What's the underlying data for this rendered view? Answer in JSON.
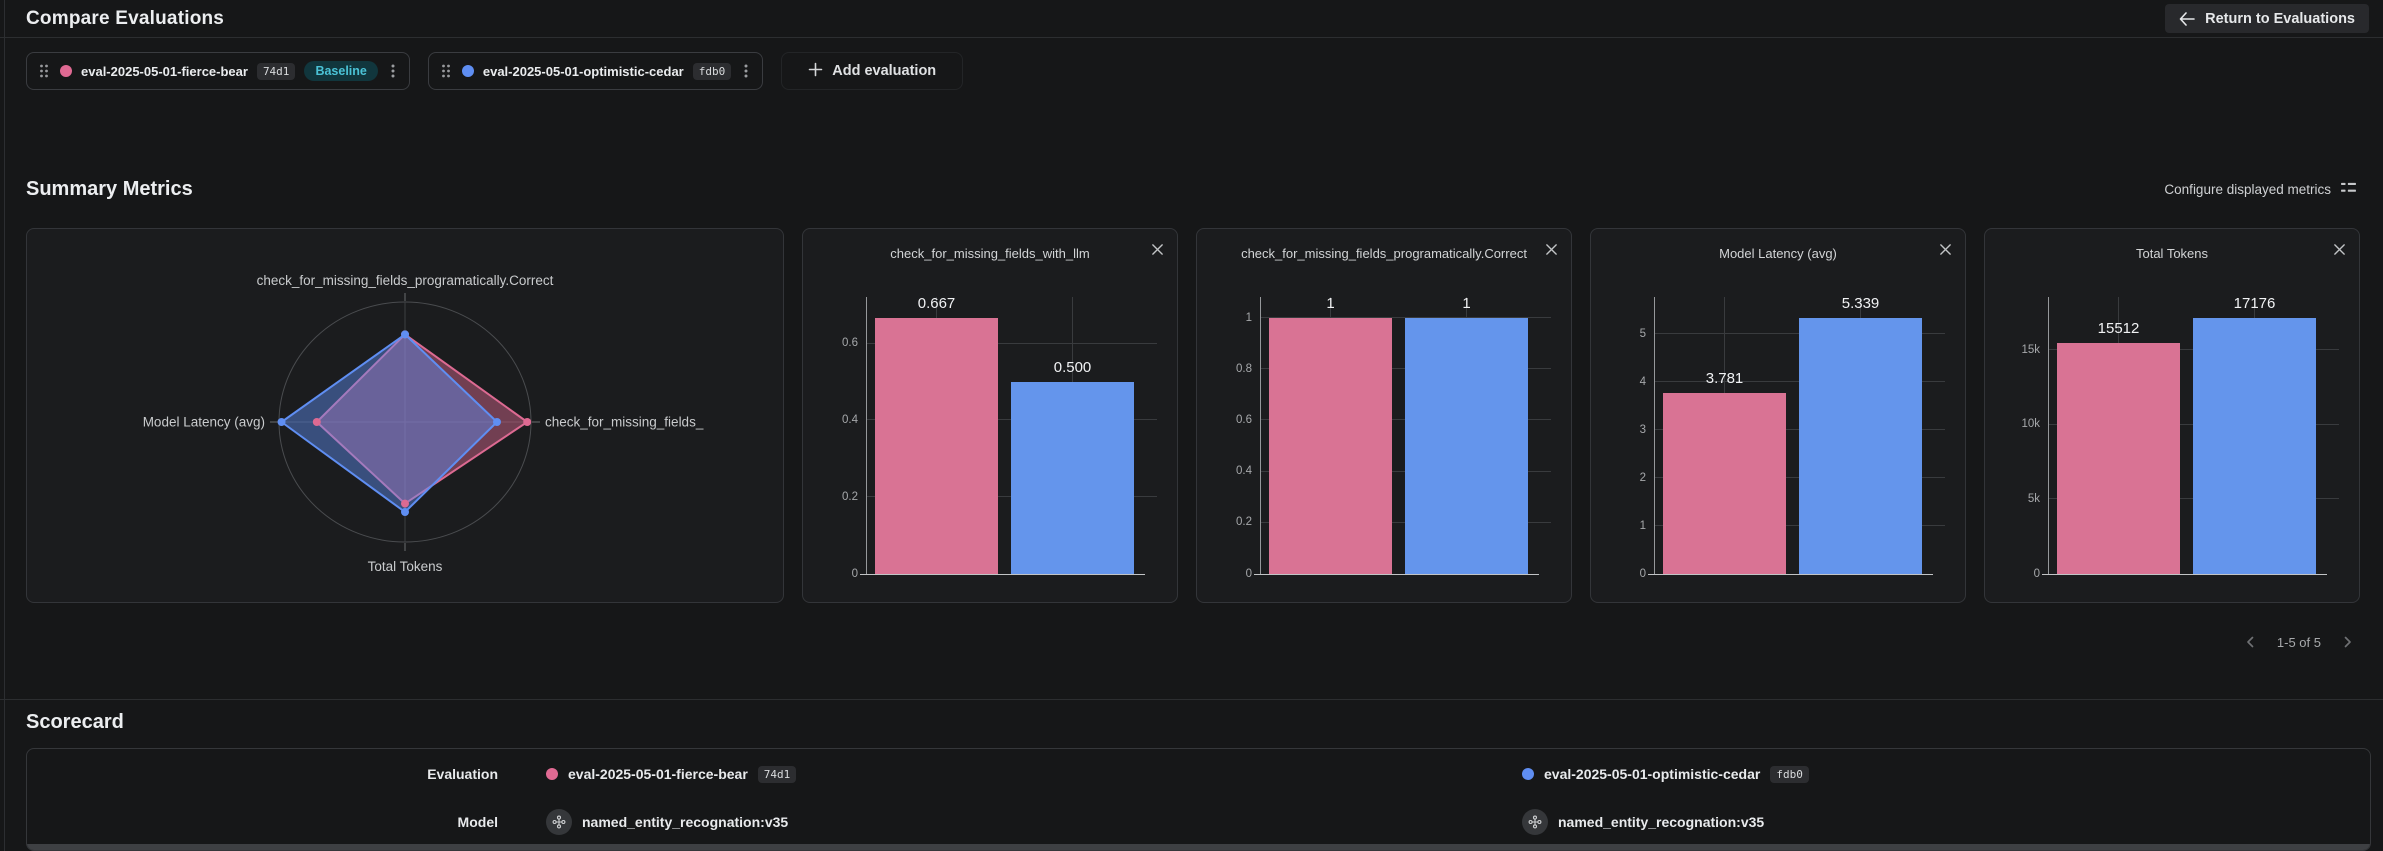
{
  "header": {
    "title": "Compare Evaluations",
    "return_label": "Return to Evaluations"
  },
  "evaluations": [
    {
      "name": "eval-2025-05-01-fierce-bear",
      "version": "74d1",
      "badge": "Baseline",
      "dot_color": "#e06a93",
      "bar_color": "#d97394"
    },
    {
      "name": "eval-2025-05-01-optimistic-cedar",
      "version": "fdb0",
      "badge": "",
      "dot_color": "#5f8ef2",
      "bar_color": "#6495ec"
    }
  ],
  "add_label": "Add evaluation",
  "summary": {
    "title": "Summary Metrics",
    "configure_label": "Configure displayed metrics",
    "pagination": "1-5 of 5"
  },
  "chart_data": [
    {
      "type": "radar",
      "axes": [
        {
          "label": "check_for_missing_fields_programatically.Correct",
          "position": "top"
        },
        {
          "label": "check_for_missing_fields_",
          "position": "right"
        },
        {
          "label": "Total Tokens",
          "position": "bottom"
        },
        {
          "label": "Model Latency (avg)",
          "position": "left"
        }
      ],
      "series": [
        {
          "name": "eval-2025-05-01-fierce-bear",
          "color": "#dd6a92",
          "fill": "rgba(221,106,146,0.45)",
          "values_fraction": [
            0.73,
            0.97,
            0.68,
            0.7
          ]
        },
        {
          "name": "eval-2025-05-01-optimistic-cedar",
          "color": "#5f8ef2",
          "fill": "rgba(95,142,242,0.45)",
          "values_fraction": [
            0.73,
            0.73,
            0.75,
            0.98
          ]
        }
      ]
    },
    {
      "type": "bar",
      "title": "check_for_missing_fields_with_llm",
      "ymax": 0.724,
      "yticks": [
        {
          "v": 0,
          "t": "0"
        },
        {
          "v": 0.2,
          "t": "0.2"
        },
        {
          "v": 0.4,
          "t": "0.4"
        },
        {
          "v": 0.6,
          "t": "0.6"
        }
      ],
      "series": [
        {
          "name": "eval-2025-05-01-fierce-bear",
          "value": 0.667,
          "label": "0.667"
        },
        {
          "name": "eval-2025-05-01-optimistic-cedar",
          "value": 0.5,
          "label": "0.500"
        }
      ]
    },
    {
      "type": "bar",
      "title": "check_for_missing_fields_programatically.Correct",
      "ymax": 1.086,
      "yticks": [
        {
          "v": 0,
          "t": "0"
        },
        {
          "v": 0.2,
          "t": "0.2"
        },
        {
          "v": 0.4,
          "t": "0.4"
        },
        {
          "v": 0.6,
          "t": "0.6"
        },
        {
          "v": 0.8,
          "t": "0.8"
        },
        {
          "v": 1,
          "t": "1"
        }
      ],
      "series": [
        {
          "name": "eval-2025-05-01-fierce-bear",
          "value": 1,
          "label": "1"
        },
        {
          "name": "eval-2025-05-01-optimistic-cedar",
          "value": 1,
          "label": "1"
        }
      ]
    },
    {
      "type": "bar",
      "title": "Model Latency (avg)",
      "ymax": 5.8,
      "yticks": [
        {
          "v": 0,
          "t": "0"
        },
        {
          "v": 1,
          "t": "1"
        },
        {
          "v": 2,
          "t": "2"
        },
        {
          "v": 3,
          "t": "3"
        },
        {
          "v": 4,
          "t": "4"
        },
        {
          "v": 5,
          "t": "5"
        }
      ],
      "series": [
        {
          "name": "eval-2025-05-01-fierce-bear",
          "value": 3.781,
          "label": "3.781"
        },
        {
          "name": "eval-2025-05-01-optimistic-cedar",
          "value": 5.339,
          "label": "5.339"
        }
      ]
    },
    {
      "type": "bar",
      "title": "Total Tokens",
      "ymax": 18650,
      "yticks": [
        {
          "v": 0,
          "t": "0"
        },
        {
          "v": 5000,
          "t": "5k"
        },
        {
          "v": 10000,
          "t": "10k"
        },
        {
          "v": 15000,
          "t": "15k"
        }
      ],
      "series": [
        {
          "name": "eval-2025-05-01-fierce-bear",
          "value": 15512,
          "label": "15512"
        },
        {
          "name": "eval-2025-05-01-optimistic-cedar",
          "value": 17176,
          "label": "17176"
        }
      ]
    }
  ],
  "scorecard": {
    "title": "Scorecard",
    "rows": [
      {
        "label": "Evaluation"
      },
      {
        "label": "Model",
        "values": [
          "named_entity_recognation:v35",
          "named_entity_recognation:v35"
        ]
      }
    ]
  }
}
